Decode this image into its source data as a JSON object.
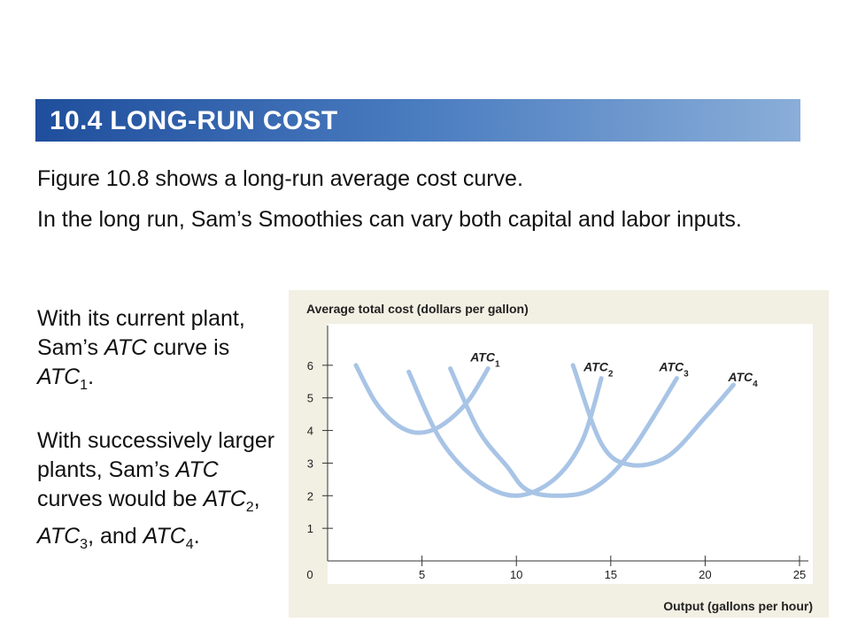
{
  "header": {
    "title": "10.4 LONG-RUN COST"
  },
  "body": {
    "para1": "Figure 10.8 shows a long-run average cost curve.",
    "para2": "In the long run, Sam’s Smoothies can vary both capital and labor inputs.",
    "side1": {
      "a": "With its current plant, Sam’s ",
      "b": "ATC",
      "c": " curve is ",
      "d": "ATC",
      "e": "1",
      "f": "."
    },
    "side2": {
      "a": "With successively larger plants, Sam’s ",
      "b": "ATC",
      "c": " curves would be ",
      "d": "ATC",
      "e": "2",
      "f": ", ",
      "g": "ATC",
      "h": "3",
      "i": ", and ",
      "j": "ATC",
      "k": "4",
      "l": "."
    }
  },
  "chart_data": {
    "type": "line",
    "ylabel": "Average total cost (dollars per gallon)",
    "xlabel": "Output (gallons per hour)",
    "xlim": [
      0,
      25
    ],
    "ylim": [
      0,
      7
    ],
    "x_ticks": [
      0,
      5,
      10,
      15,
      20,
      25
    ],
    "y_ticks": [
      1,
      2,
      3,
      4,
      5,
      6
    ],
    "line_color": "#a8c4e6",
    "series": [
      {
        "name": "ATC",
        "sub": "1",
        "x": [
          1.5,
          2.5,
          3.5,
          4.5,
          5.5,
          6.5,
          7.5,
          8.5
        ],
        "y": [
          6.0,
          4.9,
          4.25,
          3.95,
          4.0,
          4.35,
          4.95,
          5.9
        ]
      },
      {
        "name": "ATC",
        "sub": "2",
        "x": [
          4.3,
          6,
          8,
          10,
          12,
          13.5,
          14.5
        ],
        "y": [
          5.8,
          3.7,
          2.45,
          2.0,
          2.5,
          3.7,
          5.6
        ]
      },
      {
        "name": "ATC",
        "sub": "3",
        "x": [
          6.5,
          8,
          9.5,
          10.5,
          12,
          14,
          16,
          18.5
        ],
        "y": [
          5.9,
          4.0,
          2.9,
          2.2,
          2.0,
          2.2,
          3.3,
          5.6
        ]
      },
      {
        "name": "ATC",
        "sub": "4",
        "x": [
          13,
          14.5,
          16,
          18,
          20,
          21.5
        ],
        "y": [
          6.0,
          3.6,
          2.95,
          3.2,
          4.4,
          5.4
        ]
      }
    ]
  }
}
